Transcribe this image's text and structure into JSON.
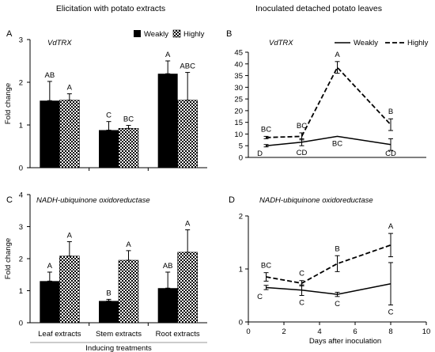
{
  "headings": {
    "left": "Elicitation with potato extracts",
    "right": "Inoculated detached potato leaves"
  },
  "legend": {
    "weakly": "Weakly",
    "highly": "Highly"
  },
  "chart_data": [
    {
      "id": "A",
      "panel_label": "A",
      "type": "bar",
      "gene": "VdTRX",
      "ylabel": "Fold change",
      "ylim": [
        0,
        3
      ],
      "yticks": [
        0,
        1,
        2,
        3
      ],
      "categories": [
        "Leaf extracts",
        "Stem extracts",
        "Root extracts"
      ],
      "show_category_labels": false,
      "series": [
        {
          "name": "Weakly",
          "values": [
            1.57,
            0.88,
            2.2
          ],
          "errors": [
            0.45,
            0.2,
            0.3
          ],
          "letters": [
            "AB",
            "C",
            "A"
          ]
        },
        {
          "name": "Highly",
          "values": [
            1.58,
            0.92,
            1.58
          ],
          "errors": [
            0.15,
            0.07,
            0.65
          ],
          "letters": [
            "A",
            "BC",
            "ABC"
          ]
        }
      ],
      "legend": "top-right"
    },
    {
      "id": "B",
      "panel_label": "B",
      "type": "line",
      "gene": "VdTRX",
      "x": [
        1,
        3,
        5,
        8
      ],
      "xlim": [
        0,
        10
      ],
      "show_x_ticks": false,
      "ylim": [
        0,
        45
      ],
      "yticks": [
        0,
        5,
        10,
        15,
        20,
        25,
        30,
        35,
        40,
        45
      ],
      "series": [
        {
          "name": "Weakly",
          "style": "solid",
          "values": [
            5,
            6.5,
            9,
            5.5
          ],
          "errors": [
            0.5,
            1.5,
            0,
            2.5
          ],
          "letters": [
            "D",
            "CD",
            "BC",
            "CD"
          ]
        },
        {
          "name": "Highly",
          "style": "dashed",
          "values": [
            8.5,
            9,
            38.5,
            14
          ],
          "errors": [
            0.5,
            1.5,
            2.5,
            2.5
          ],
          "letters": [
            "BC",
            "BC",
            "A",
            "B"
          ]
        }
      ],
      "legend": "top-right"
    },
    {
      "id": "C",
      "panel_label": "C",
      "type": "bar",
      "gene": "NADH-ubiquinone oxidoreductase",
      "ylabel": "Fold change",
      "ylim": [
        0,
        4
      ],
      "yticks": [
        0,
        1,
        2,
        3,
        4
      ],
      "categories": [
        "Leaf extracts",
        "Stem extracts",
        "Root extracts"
      ],
      "show_category_labels": true,
      "xlabel": "Inducing treatments",
      "series": [
        {
          "name": "Weakly",
          "values": [
            1.3,
            0.68,
            1.08
          ],
          "errors": [
            0.28,
            0.05,
            0.5
          ],
          "letters": [
            "A",
            "B",
            "AB"
          ]
        },
        {
          "name": "Highly",
          "values": [
            2.08,
            1.95,
            2.2
          ],
          "errors": [
            0.45,
            0.3,
            0.7
          ],
          "letters": [
            "A",
            "A",
            "A"
          ]
        }
      ]
    },
    {
      "id": "D",
      "panel_label": "D",
      "type": "line",
      "gene": "NADH-ubiquinone oxidoreductase",
      "x": [
        1,
        3,
        5,
        8
      ],
      "xlim": [
        0,
        10
      ],
      "show_x_ticks": true,
      "xticks": [
        0,
        2,
        4,
        6,
        8,
        10
      ],
      "xlabel": "Days after inoculation",
      "ylim": [
        0,
        2
      ],
      "yticks": [
        0,
        1,
        2
      ],
      "series": [
        {
          "name": "Weakly",
          "style": "solid",
          "values": [
            0.65,
            0.6,
            0.52,
            0.72
          ],
          "errors": [
            0.04,
            0.1,
            0.04,
            0.4
          ],
          "letters": [
            "C",
            "C",
            "C",
            "C"
          ]
        },
        {
          "name": "Highly",
          "style": "dashed",
          "values": [
            0.85,
            0.73,
            1.1,
            1.45
          ],
          "errors": [
            0.08,
            0.05,
            0.15,
            0.22
          ],
          "letters": [
            "BC",
            "C",
            "B",
            "A"
          ]
        }
      ]
    }
  ],
  "colors": {
    "weakly": "#000000",
    "highly_check_a": "#000000",
    "highly_check_b": "#ffffff",
    "axis": "#000000"
  }
}
